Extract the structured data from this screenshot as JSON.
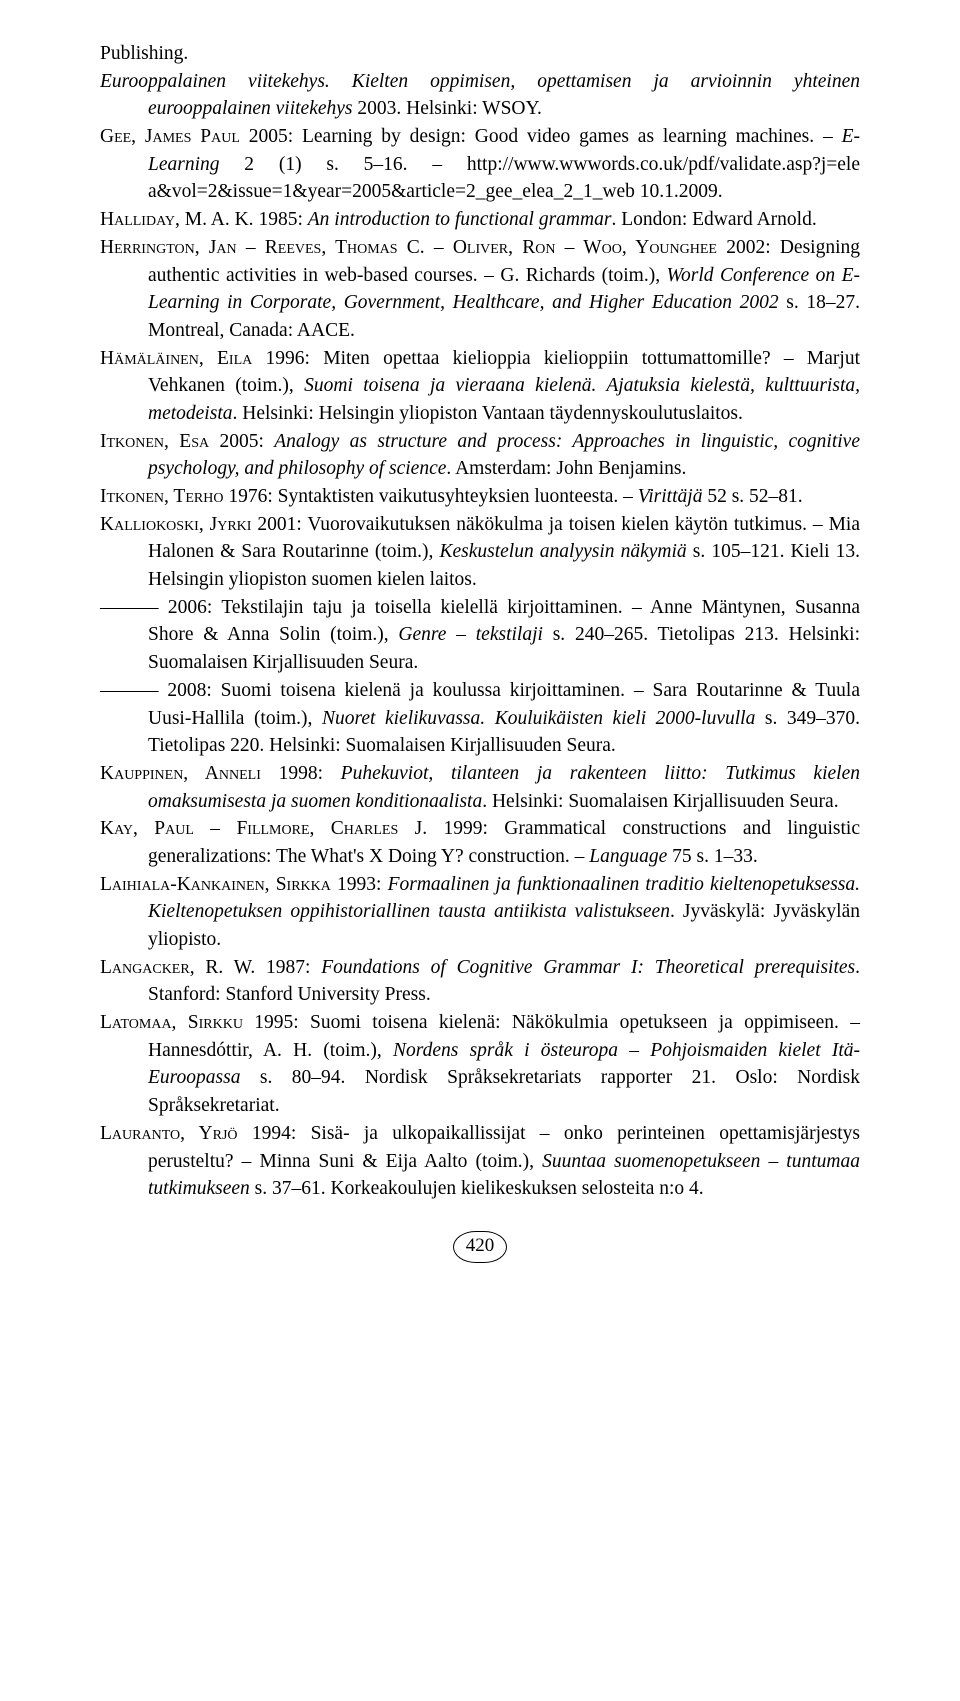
{
  "refs": {
    "r1a": "Publishing.",
    "r1b_i": "Eurooppalainen viitekehys. Kielten oppimisen, opettamisen ja arvioinnin yhteinen eurooppalainen viitekehys",
    "r1b_t": " 2003. Helsinki: WSOY.",
    "r2_a": "Gee, James Paul",
    "r2_t1": " 2005: Learning by design: Good video games as learning machines. – ",
    "r2_i": "E-Learning",
    "r2_t2": " 2 (1) s. 5–16. – http://www.wwwords.co.uk/pdf/validate.asp?j=ele a&vol=2&issue=1&year=2005&article=2_gee_elea_2_1_web 10.1.2009.",
    "r3_a": "Halliday, M. A. K.",
    "r3_t1": " 1985: ",
    "r3_i": "An introduction to functional grammar",
    "r3_t2": ". London: Edward Arnold.",
    "r4_a": "Herrington, Jan – Reeves, Thomas C. – Oliver, Ron – Woo, Younghee",
    "r4_t1": " 2002: Designing authentic activities in web-based courses. – G. Richards (toim.), ",
    "r4_i": "World Conference on E-Learning in Corporate, Government, Healthcare, and Higher Education 2002",
    "r4_t2": " s. 18–27. Montreal, Canada: AACE.",
    "r5_a": "Hämäläinen, Eila",
    "r5_t1": " 1996: Miten opettaa kielioppia kielioppiin tottumattomille? – Marjut Vehkanen (toim.), ",
    "r5_i": "Suomi toisena ja vieraana kielenä. Ajatuksia kielestä, kulttuurista, metodeista",
    "r5_t2": ". Helsinki: Helsingin yliopiston Vantaan täydennyskoulutuslaitos.",
    "r6_a": "Itkonen, Esa",
    "r6_t1": " 2005: ",
    "r6_i": "Analogy as structure and process: Approaches in linguistic, cognitive psychology, and philosophy of science",
    "r6_t2": ". Amsterdam: John Benjamins.",
    "r7_a": "Itkonen, Terho",
    "r7_t1": " 1976: Syntaktisten vaikutusyhteyksien luonteesta. – ",
    "r7_i": "Virittäjä",
    "r7_t2": " 52 s. 52–81.",
    "r8_a": "Kalliokoski, Jyrki",
    "r8_t1": " 2001: Vuorovaikutuksen näkökulma ja toisen kielen käytön tutkimus. – Mia Halonen & Sara Routarinne (toim.), ",
    "r8_i": "Keskustelun analyysin näkymiä",
    "r8_t2": " s. 105–121. Kieli 13. Helsingin yliopiston suomen kielen laitos.",
    "r9_t1": "——— 2006: Tekstilajin taju ja toisella kielellä kirjoittaminen. – Anne Mäntynen, Susanna Shore & Anna Solin (toim.), ",
    "r9_i": "Genre – tekstilaji",
    "r9_t2": " s. 240–265. Tietolipas 213. Helsinki: Suomalaisen Kirjallisuuden Seura.",
    "r10_t1": "——— 2008: Suomi toisena kielenä ja koulussa kirjoittaminen. – Sara Routarinne & Tuula Uusi-Hallila (toim.), ",
    "r10_i": "Nuoret kielikuvassa. Kouluikäisten kieli 2000-luvulla",
    "r10_t2": " s. 349–370. Tietolipas 220. Helsinki: Suomalaisen Kirjallisuuden Seura.",
    "r11_a": "Kauppinen, Anneli",
    "r11_t1": " 1998: ",
    "r11_i": "Puhekuviot, tilanteen ja rakenteen liitto: Tutkimus kielen omaksumisesta ja suomen konditionaalista",
    "r11_t2": ". Helsinki: Suomalaisen Kirjallisuuden Seura.",
    "r12_a": "Kay, Paul – Fillmore, Charles J.",
    "r12_t1": " 1999: Grammatical constructions and linguistic generalizations: The What's X Doing Y? construction. – ",
    "r12_i": "Language",
    "r12_t2": " 75 s. 1–33.",
    "r13_a": "Laihiala-Kankainen, Sirkka",
    "r13_t1": " 1993: ",
    "r13_i": "Formaalinen ja funktionaalinen traditio kieltenopetuksessa. Kieltenopetuksen oppihistoriallinen tausta antiikista valistukseen",
    "r13_t2": ". Jyväskylä: Jyväskylän yliopisto.",
    "r14_a": "Langacker, R. W.",
    "r14_t1": " 1987: ",
    "r14_i": "Foundations of Cognitive Grammar I: Theoretical prerequisites",
    "r14_t2": ". Stanford: Stanford University Press.",
    "r15_a": "Latomaa, Sirkku",
    "r15_t1": " 1995: Suomi toisena kielenä: Näkökulmia opetukseen ja oppimiseen. – Hannesdóttir, A. H. (toim.), ",
    "r15_i": "Nordens språk i östeuropa – Pohjoismaiden kielet Itä-Euroopassa",
    "r15_t2": " s. 80–94. Nordisk Språksekretariats rapporter 21. Oslo: Nordisk Språksekretariat.",
    "r16_a": "Lauranto, Yrjö",
    "r16_t1": " 1994: Sisä- ja ulkopaikallissijat – onko perinteinen opettamisjärjestys perusteltu? – Minna Suni & Eija Aalto (toim.), ",
    "r16_i": "Suuntaa suomenopetukseen – tuntumaa tutkimukseen",
    "r16_t2": " s. 37–61. Korkeakoulujen kielikeskuksen selosteita n:o 4."
  },
  "page_number": "420"
}
